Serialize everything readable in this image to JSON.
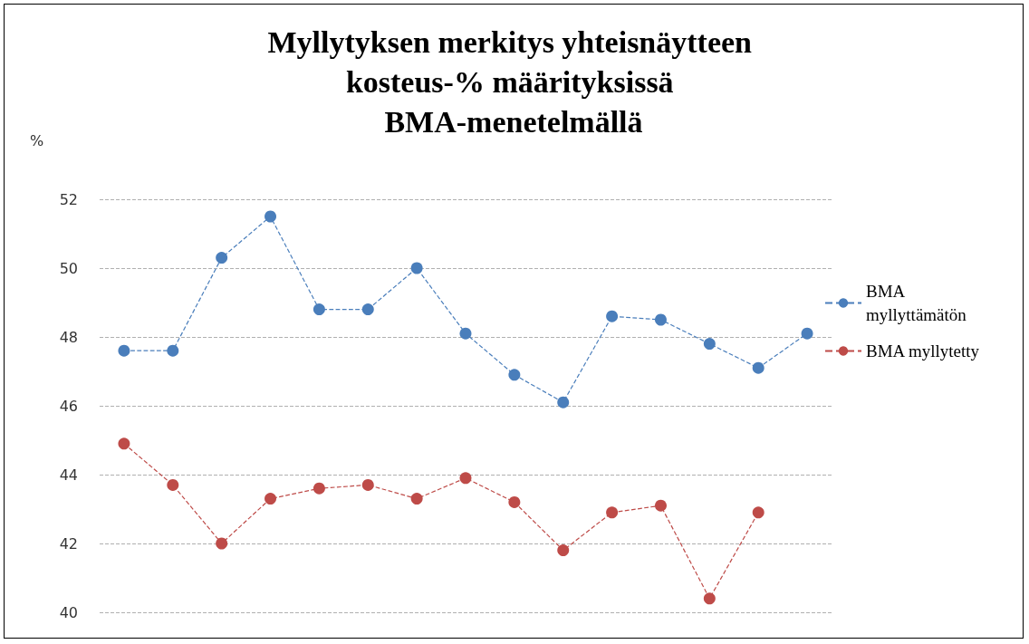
{
  "chart_data": {
    "type": "line",
    "title": "Myllytyksen merkitys yhteisnäytteen kosteus-% määrityksissä BMA-menetelmällä",
    "ylabel": "%",
    "categories": [
      null,
      null,
      null,
      null,
      null,
      null,
      null,
      null,
      null,
      null,
      null,
      null,
      null,
      null,
      null
    ],
    "series": [
      {
        "name": "BMA myllyttämätön",
        "color": "#4a7ebb",
        "values": [
          47.6,
          47.6,
          50.3,
          51.5,
          48.8,
          48.8,
          50.0,
          48.1,
          46.9,
          46.1,
          48.6,
          48.5,
          47.8,
          47.1,
          48.1
        ]
      },
      {
        "name": "BMA myllytetty",
        "color": "#be4b48",
        "values": [
          44.9,
          43.7,
          42.0,
          43.3,
          43.6,
          43.7,
          43.3,
          43.9,
          43.2,
          41.8,
          42.9,
          43.1,
          40.4,
          42.9,
          null
        ]
      }
    ],
    "ylim": [
      40,
      52
    ],
    "yticks": [
      40,
      42,
      44,
      46,
      48,
      50,
      52
    ],
    "grid": "y",
    "legend": "right",
    "marker": "circle",
    "line_style": "dashed"
  }
}
